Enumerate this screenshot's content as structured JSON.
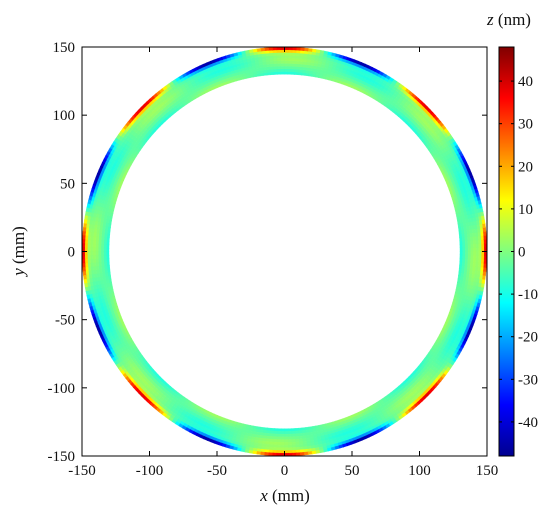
{
  "chart_data": {
    "type": "heatmap",
    "shape": "annulus",
    "title": "",
    "xlabel": {
      "var": "x",
      "unit": " (mm)"
    },
    "ylabel": {
      "var": "y",
      "unit": " (mm)"
    },
    "xlim": [
      -150,
      150
    ],
    "ylim": [
      -150,
      150
    ],
    "xticks": [
      "-150",
      "-100",
      "-50",
      "0",
      "50",
      "100",
      "150"
    ],
    "yticks": [
      "150",
      "100",
      "50",
      "0",
      "-50",
      "-100",
      "-150"
    ],
    "inner_radius_mm": 130,
    "outer_radius_mm": 150,
    "angular_order": 8,
    "colorbar": {
      "label": {
        "var": "z",
        "unit": " (nm)"
      },
      "range": [
        -48,
        48
      ],
      "ticks": [
        "40",
        "30",
        "20",
        "10",
        "0",
        "-10",
        "-20",
        "-30",
        "-40"
      ],
      "colormap": "jet"
    },
    "grid": false
  }
}
